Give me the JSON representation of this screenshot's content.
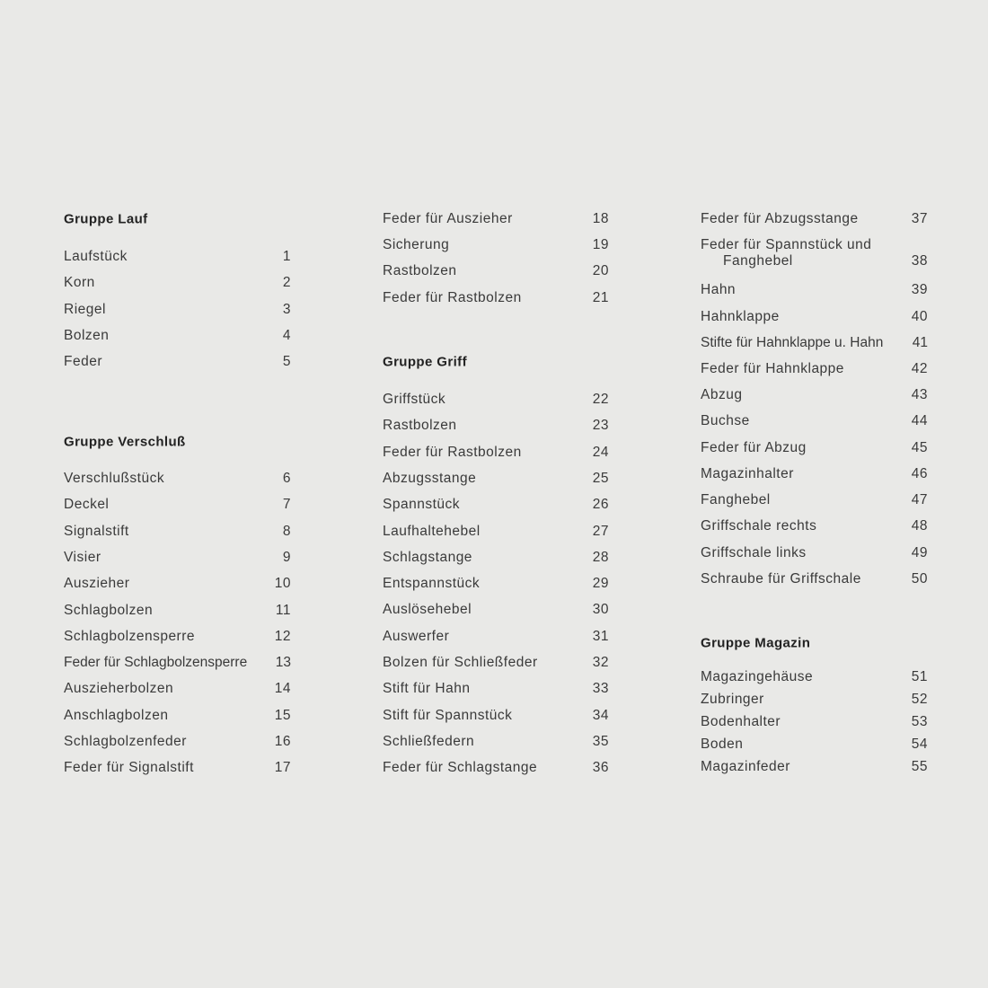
{
  "columns": [
    {
      "blocks": [
        {
          "header": "Gruppe Lauf",
          "items": [
            {
              "label": "Laufstück",
              "num": "1"
            },
            {
              "label": "Korn",
              "num": "2"
            },
            {
              "label": "Riegel",
              "num": "3"
            },
            {
              "label": "Bolzen",
              "num": "4"
            },
            {
              "label": "Feder",
              "num": "5"
            }
          ]
        },
        {
          "header": "Gruppe Verschluß",
          "items": [
            {
              "label": "Verschlußstück",
              "num": "6"
            },
            {
              "label": "Deckel",
              "num": "7"
            },
            {
              "label": "Signalstift",
              "num": "8"
            },
            {
              "label": "Visier",
              "num": "9"
            },
            {
              "label": "Auszieher",
              "num": "10"
            },
            {
              "label": "Schlagbolzen",
              "num": "11"
            },
            {
              "label": "Schlagbolzensperre",
              "num": "12"
            },
            {
              "label": "Feder für Schlagbolzensperre",
              "num": "13"
            },
            {
              "label": "Auszieherbolzen",
              "num": "14"
            },
            {
              "label": "Anschlagbolzen",
              "num": "15"
            },
            {
              "label": "Schlagbolzenfeder",
              "num": "16"
            },
            {
              "label": "Feder für Signalstift",
              "num": "17"
            }
          ]
        }
      ]
    },
    {
      "blocks": [
        {
          "header": "",
          "items": [
            {
              "label": "Feder für Auszieher",
              "num": "18"
            },
            {
              "label": "Sicherung",
              "num": "19"
            },
            {
              "label": "Rastbolzen",
              "num": "20"
            },
            {
              "label": "Feder für Rastbolzen",
              "num": "21"
            }
          ]
        },
        {
          "header": "Gruppe Griff",
          "items": [
            {
              "label": "Griffstück",
              "num": "22"
            },
            {
              "label": "Rastbolzen",
              "num": "23"
            },
            {
              "label": "Feder für Rastbolzen",
              "num": "24"
            },
            {
              "label": "Abzugsstange",
              "num": "25"
            },
            {
              "label": "Spannstück",
              "num": "26"
            },
            {
              "label": "Laufhaltehebel",
              "num": "27"
            },
            {
              "label": "Schlagstange",
              "num": "28"
            },
            {
              "label": "Entspannstück",
              "num": "29"
            },
            {
              "label": "Auslösehebel",
              "num": "30"
            },
            {
              "label": "Auswerfer",
              "num": "31"
            },
            {
              "label": "Bolzen für Schließfeder",
              "num": "32"
            },
            {
              "label": "Stift für Hahn",
              "num": "33"
            },
            {
              "label": "Stift für Spannstück",
              "num": "34"
            },
            {
              "label": "Schließfedern",
              "num": "35"
            },
            {
              "label": "Feder für Schlagstange",
              "num": "36"
            }
          ]
        }
      ]
    },
    {
      "blocks": [
        {
          "header": "",
          "items": [
            {
              "label": "Feder für Abzugsstange",
              "num": "37"
            },
            {
              "label": "Feder für Spannstück und",
              "label2": "Fanghebel",
              "num": "38"
            },
            {
              "label": "Hahn",
              "num": "39"
            },
            {
              "label": "Hahnklappe",
              "num": "40"
            },
            {
              "label": "Stifte für Hahnklappe u. Hahn",
              "num": "41"
            },
            {
              "label": "Feder für Hahnklappe",
              "num": "42"
            },
            {
              "label": "Abzug",
              "num": "43"
            },
            {
              "label": "Buchse",
              "num": "44"
            },
            {
              "label": "Feder für Abzug",
              "num": "45"
            },
            {
              "label": "Magazinhalter",
              "num": "46"
            },
            {
              "label": "Fanghebel",
              "num": "47"
            },
            {
              "label": "Griffschale rechts",
              "num": "48"
            },
            {
              "label": "Griffschale links",
              "num": "49"
            },
            {
              "label": "Schraube für Griffschale",
              "num": "50"
            }
          ]
        },
        {
          "header": "Gruppe Magazin",
          "items": [
            {
              "label": "Magazingehäuse",
              "num": "51"
            },
            {
              "label": "Zubringer",
              "num": "52"
            },
            {
              "label": "Bodenhalter",
              "num": "53"
            },
            {
              "label": "Boden",
              "num": "54"
            },
            {
              "label": "Magazinfeder",
              "num": "55"
            }
          ]
        }
      ]
    }
  ]
}
